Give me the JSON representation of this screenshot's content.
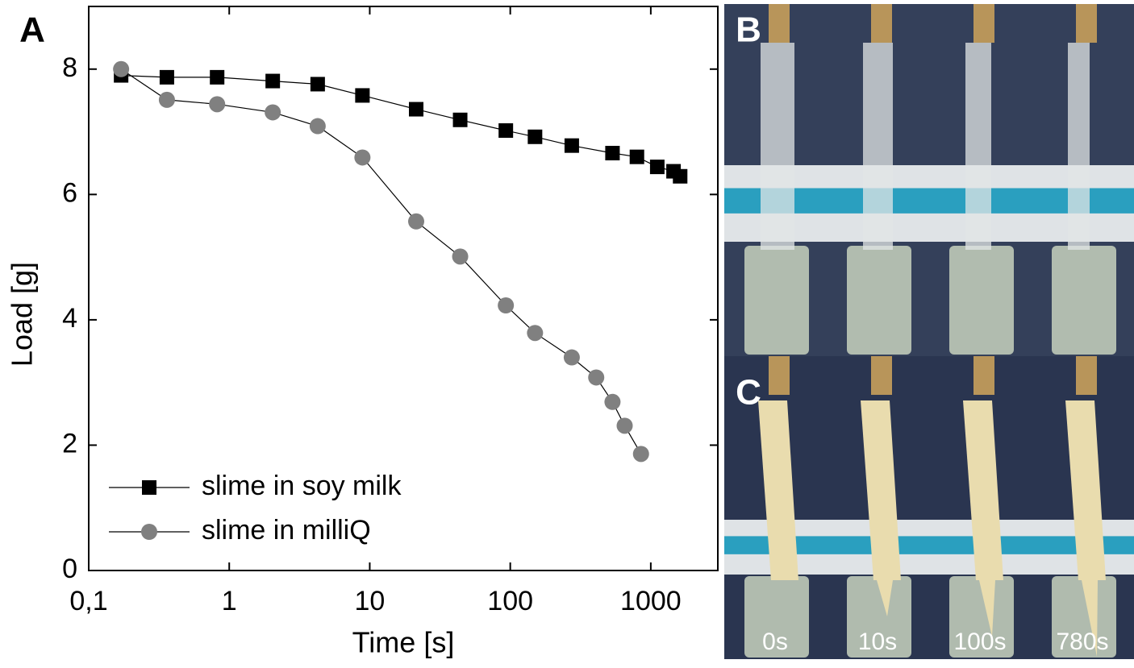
{
  "chart_data": {
    "type": "line",
    "panel_label": "A",
    "x_label": "Time [s]",
    "y_label": "Load [g]",
    "log_x": true,
    "xlim": [
      0.1,
      3000
    ],
    "ylim": [
      0,
      9
    ],
    "xticks": [
      {
        "value": 0.1,
        "label": "0,1"
      },
      1,
      10,
      100,
      1000
    ],
    "yticks": [
      0,
      2,
      4,
      6,
      8
    ],
    "legend": "lower left",
    "series": [
      {
        "name": "slime in soy milk",
        "color": "#000000",
        "marker": "square",
        "x": [
          0.17,
          0.36,
          0.82,
          2.04,
          4.26,
          8.87,
          21.4,
          44,
          93,
          150,
          274,
          534,
          797,
          1112,
          1452,
          1618
        ],
        "values": [
          7.9,
          7.87,
          7.87,
          7.81,
          7.76,
          7.58,
          7.36,
          7.19,
          7.02,
          6.92,
          6.78,
          6.66,
          6.6,
          6.44,
          6.37,
          6.29
        ]
      },
      {
        "name": "slime in milliQ",
        "color": "#808080",
        "marker": "circle",
        "x": [
          0.17,
          0.36,
          0.82,
          2.04,
          4.26,
          8.87,
          21.4,
          44,
          93,
          150,
          274,
          409,
          534,
          652,
          852
        ],
        "values": [
          8.0,
          7.51,
          7.44,
          7.31,
          7.09,
          6.59,
          5.57,
          5.01,
          4.23,
          3.79,
          3.4,
          3.08,
          2.69,
          2.31,
          1.86
        ]
      }
    ]
  },
  "photo_panels": {
    "labels": [
      "B",
      "C"
    ],
    "times": [
      "0s",
      "10s",
      "100s",
      "780s"
    ]
  }
}
